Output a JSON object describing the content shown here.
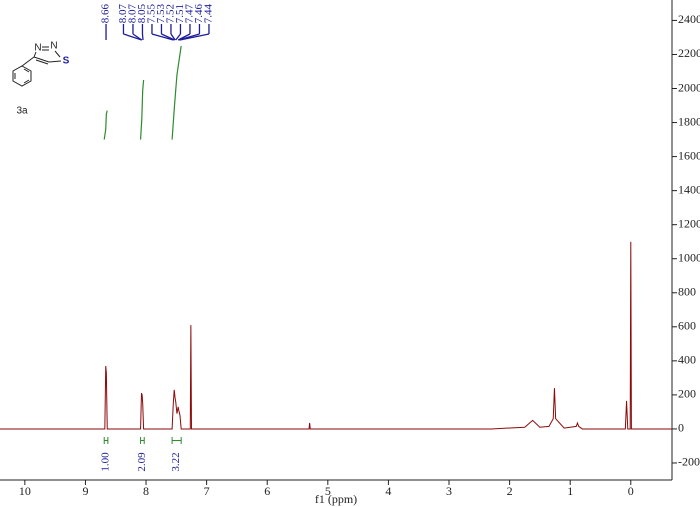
{
  "chart_data": {
    "type": "line",
    "x_label": "f1 (ppm)",
    "xlim": [
      10.41,
      -0.68
    ],
    "xticks": [
      10,
      9,
      8,
      7,
      6,
      5,
      4,
      3,
      2,
      1,
      0
    ],
    "ylim": [
      -300,
      2520
    ],
    "yticks": [
      -200,
      0,
      200,
      400,
      600,
      800,
      1000,
      1200,
      1400,
      1600,
      1800,
      2000,
      2200,
      2400
    ],
    "series": [
      {
        "color": "#8b0a0a",
        "x": [
          10.41,
          8.68,
          8.665,
          8.655,
          8.64,
          8.09,
          8.075,
          8.065,
          8.055,
          8.04,
          7.57,
          7.55,
          7.535,
          7.52,
          7.51,
          7.49,
          7.47,
          7.46,
          7.44,
          7.42,
          7.27,
          7.26,
          7.25,
          5.31,
          5.3,
          5.29,
          2.3,
          1.75,
          1.62,
          1.5,
          1.35,
          1.28,
          1.26,
          1.24,
          1.1,
          0.9,
          0.88,
          0.86,
          0.8,
          0.09,
          0.07,
          0.05,
          0.01,
          0.0,
          -0.01,
          -0.68
        ],
        "values": [
          0,
          0,
          370,
          330,
          0,
          0,
          210,
          200,
          150,
          0,
          0,
          150,
          230,
          180,
          160,
          90,
          130,
          110,
          80,
          0,
          0,
          610,
          0,
          0,
          35,
          0,
          0,
          10,
          50,
          10,
          15,
          60,
          240,
          60,
          5,
          15,
          35,
          15,
          0,
          0,
          165,
          0,
          0,
          1100,
          0,
          0
        ]
      }
    ],
    "integral_curves": [
      {
        "color": "#2e8b2e",
        "x": [
          8.69,
          8.665,
          8.655,
          8.64
        ],
        "y": [
          1700,
          1760,
          1850,
          1870
        ]
      },
      {
        "color": "#2e8b2e",
        "x": [
          8.09,
          8.07,
          8.055,
          8.04
        ],
        "y": [
          1700,
          1820,
          1990,
          2050
        ]
      },
      {
        "color": "#2e8b2e",
        "x": [
          7.57,
          7.53,
          7.49,
          7.42
        ],
        "y": [
          1700,
          1900,
          2080,
          2250
        ]
      }
    ],
    "peaks": {
      "color": "#1c1c9c",
      "values": [
        8.66,
        8.07,
        8.07,
        8.05,
        7.55,
        7.53,
        7.52,
        7.51,
        7.47,
        7.46,
        7.44
      ],
      "value_labels": [
        "8.66",
        "8.07",
        "8.07",
        "8.05",
        "7.55",
        "7.53",
        "7.52",
        "7.51",
        "7.47",
        "7.46",
        "7.44"
      ]
    },
    "integrals": {
      "color": "#2e8b2e",
      "label_color": "#1c1c9c",
      "from": [
        8.69,
        8.09,
        7.57
      ],
      "to": [
        8.63,
        8.03,
        7.42
      ],
      "values": [
        1.0,
        2.09,
        3.22
      ],
      "value_labels": [
        "1.00",
        "2.09",
        "3.22"
      ]
    }
  },
  "structure": {
    "atoms": [
      "N",
      "N",
      "S"
    ],
    "label": "3a"
  }
}
